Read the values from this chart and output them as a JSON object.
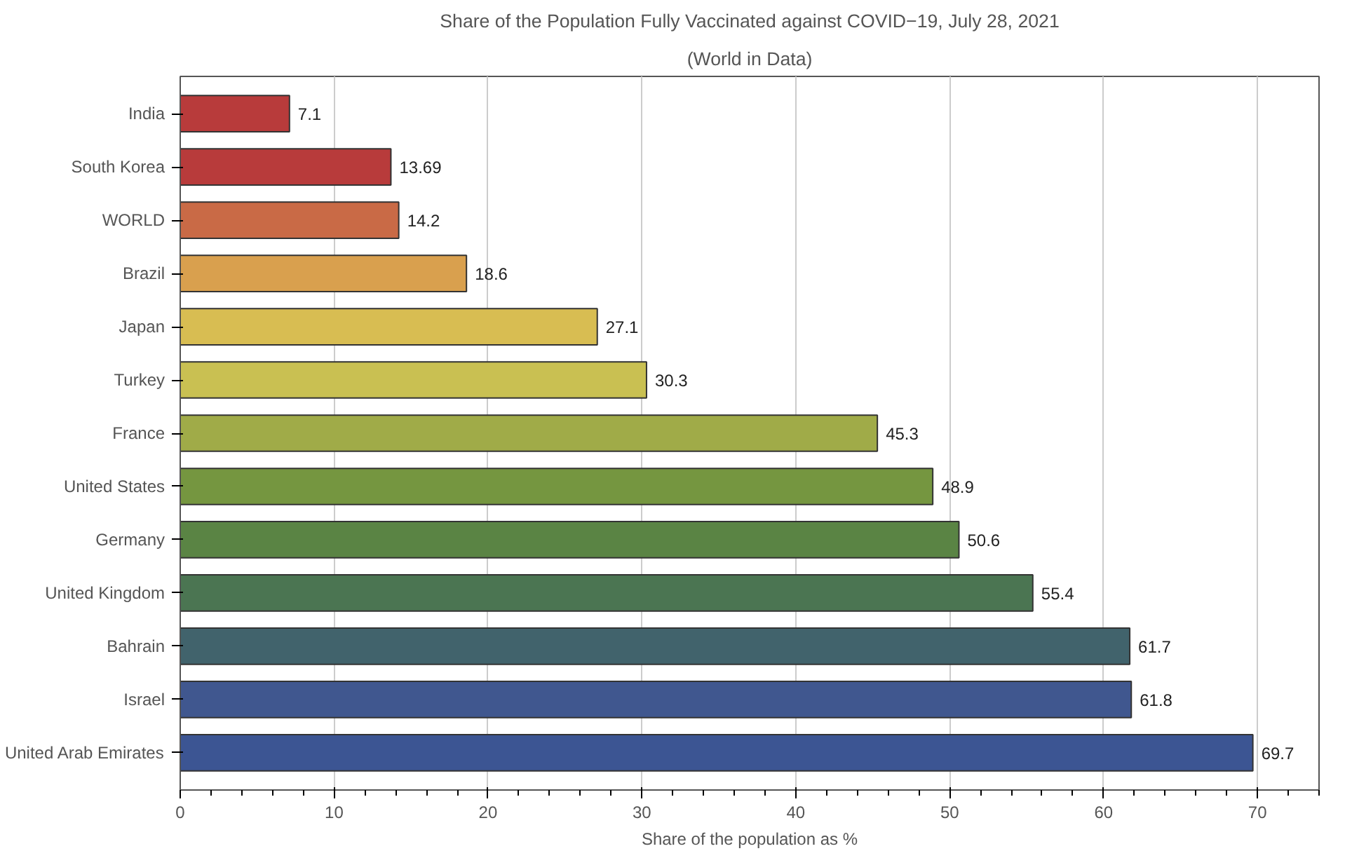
{
  "chart_data": {
    "type": "bar",
    "orientation": "horizontal",
    "title": "Share of the Population Fully Vaccinated against COVID−19, July 28, 2021",
    "subtitle": "(World in Data)",
    "xlabel": "Share of the population as %",
    "categories": [
      "India",
      "South Korea",
      "WORLD",
      "Brazil",
      "Japan",
      "Turkey",
      "France",
      "United States",
      "Germany",
      "United Kingdom",
      "Bahrain",
      "Israel",
      "United Arab Emirates"
    ],
    "values": [
      7.1,
      13.69,
      14.2,
      18.6,
      27.1,
      30.3,
      45.3,
      48.9,
      50.6,
      55.4,
      61.7,
      61.8,
      69.7
    ],
    "colors": [
      "#b83b3b",
      "#b83b3b",
      "#c96a46",
      "#d9a04e",
      "#d8bd52",
      "#c9c052",
      "#a0ab48",
      "#759640",
      "#5a8444",
      "#4b7552",
      "#41636c",
      "#40578f",
      "#3c5593"
    ],
    "xlim": [
      0,
      74
    ],
    "xticks": [
      0,
      10,
      20,
      30,
      40,
      50,
      60,
      70
    ],
    "grid": "x",
    "data_labels": true
  }
}
